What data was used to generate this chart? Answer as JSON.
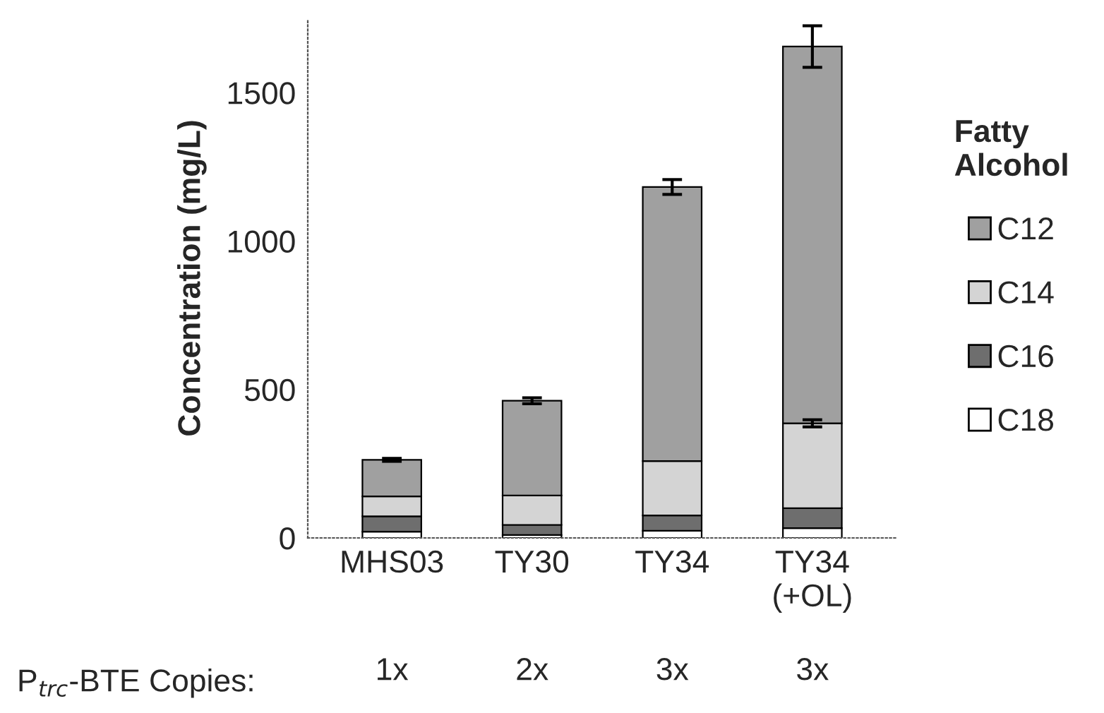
{
  "chart_data": {
    "type": "bar",
    "stacked": true,
    "categories": [
      "MHS03",
      "TY30",
      "TY34",
      "TY34\n(+OL)"
    ],
    "ylabel": "Concentration (mg/L)",
    "legend_title": "Fatty\nAlcohol",
    "legend": "right",
    "ylim": [
      0,
      1750
    ],
    "yticks": [
      0,
      500,
      1000,
      1500
    ],
    "grid": false,
    "series": [
      {
        "name": "C18",
        "color": "#ffffff",
        "values": [
          21,
          10,
          24,
          33
        ]
      },
      {
        "name": "C16",
        "color": "#6e6e6e",
        "values": [
          52,
          34,
          52,
          67
        ]
      },
      {
        "name": "C14",
        "color": "#d4d4d4",
        "values": [
          67,
          99,
          183,
          286
        ],
        "errors": [
          null,
          null,
          null,
          12
        ]
      },
      {
        "name": "C12",
        "color": "#a0a0a0",
        "values": [
          123,
          319,
          923,
          1269
        ],
        "errors": [
          5,
          10,
          25,
          70
        ]
      }
    ],
    "annotations": [
      "P$_{trc}$-BTE Copies:",
      "1x",
      "2x",
      "3x",
      "3x"
    ]
  }
}
